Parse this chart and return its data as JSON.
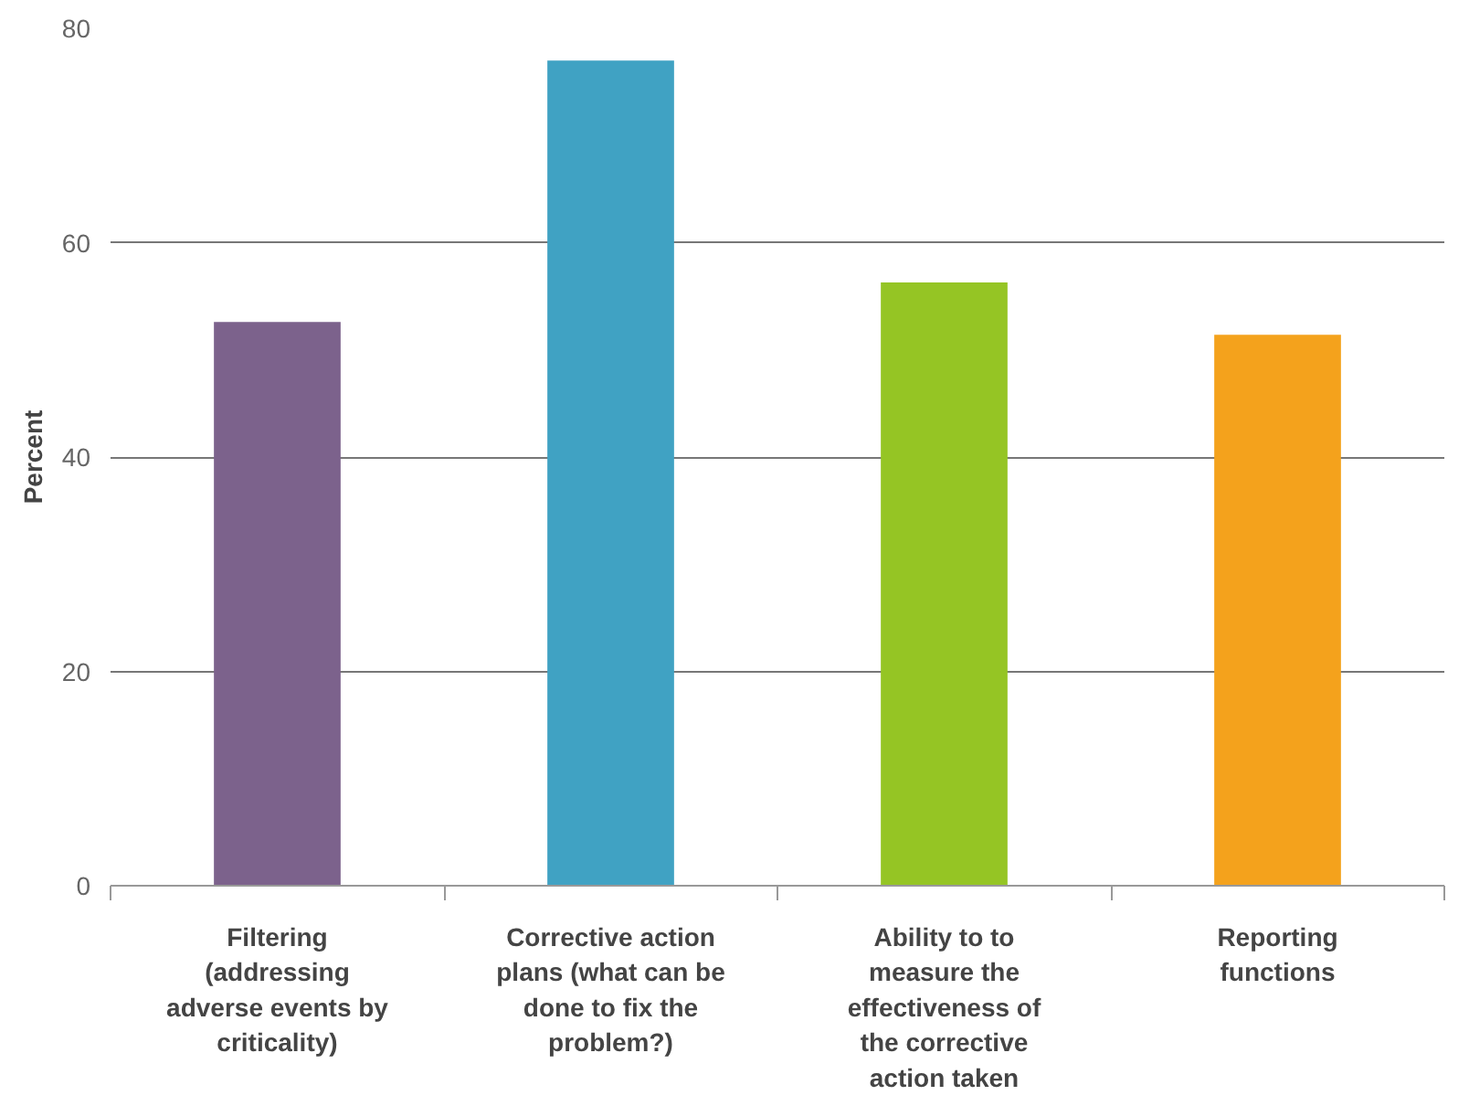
{
  "chart_data": {
    "type": "bar",
    "ylabel": "Percent",
    "categories": [
      "Filtering (addressing adverse events by criticality)",
      "Corrective action plans (what can be done to fix the problem?)",
      "Ability to to measure the effectiveness of the corrective action taken",
      "Reporting functions"
    ],
    "values": [
      52.6,
      77.0,
      56.3,
      51.4
    ],
    "colors": [
      "#7c628c",
      "#40a2c3",
      "#95c524",
      "#f4a21c"
    ],
    "ylim": [
      0,
      80
    ],
    "yticks": [
      0,
      20,
      40,
      60,
      80
    ],
    "grid": "y"
  }
}
